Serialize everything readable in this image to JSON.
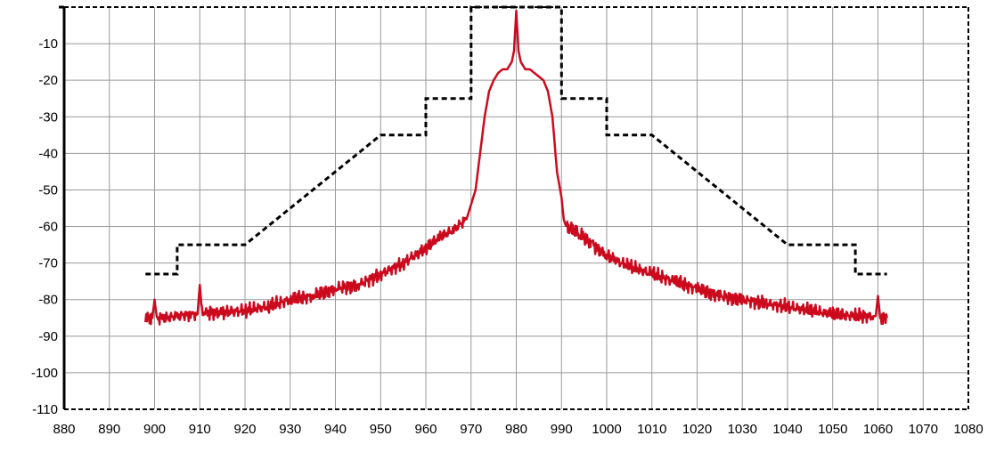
{
  "chart_data": {
    "type": "line",
    "title": "",
    "xlabel": "",
    "ylabel": "",
    "xlim": [
      880,
      1080
    ],
    "ylim": [
      -110,
      0
    ],
    "grid": true,
    "legend": "none",
    "x_ticks": [
      "880",
      "890",
      "900",
      "910",
      "920",
      "930",
      "940",
      "950",
      "960",
      "970",
      "980",
      "990",
      "1000",
      "1010",
      "1020",
      "1030",
      "1040",
      "1050",
      "1060",
      "1070",
      "1080"
    ],
    "y_ticks": [
      "-10",
      "-20",
      "-30",
      "-40",
      "-50",
      "-60",
      "-70",
      "-80",
      "-90",
      "-100",
      "-110"
    ],
    "series": [
      {
        "kind": "mask",
        "color": "#000000",
        "style": "dashed",
        "x": [
          898,
          905,
          905,
          910,
          920,
          950,
          960,
          960,
          970,
          970,
          990,
          990,
          1000,
          1000,
          1010,
          1040,
          1050,
          1055,
          1055,
          1062
        ],
        "y": [
          -73,
          -73,
          -65,
          -65,
          -65,
          -35,
          -35,
          -25,
          -25,
          0,
          0,
          -25,
          -25,
          -35,
          -35,
          -65,
          -65,
          -65,
          -73,
          -73
        ]
      },
      {
        "kind": "spectrum",
        "color": "#cc0a1e",
        "style": "solid",
        "x": [
          898,
          899.5,
          900,
          900.5,
          902,
          905,
          908,
          909.5,
          910,
          910.5,
          912,
          915,
          920,
          925,
          930,
          935,
          940,
          945,
          950,
          955,
          960,
          963,
          966,
          969,
          970,
          970.5,
          971,
          972,
          973,
          974,
          975,
          976,
          977,
          978,
          979,
          979.5,
          980,
          980.5,
          981,
          982,
          983,
          984,
          985,
          986,
          987,
          988,
          989,
          990,
          990.5,
          991,
          994,
          997,
          1000,
          1005,
          1010,
          1015,
          1020,
          1025,
          1030,
          1035,
          1040,
          1045,
          1050,
          1055,
          1059,
          1059.5,
          1060,
          1060.5,
          1062
        ],
        "y": [
          -85,
          -85,
          -80,
          -85,
          -85,
          -84.5,
          -84,
          -84,
          -76,
          -83.5,
          -83.5,
          -83.5,
          -83,
          -82,
          -80,
          -79,
          -77,
          -76,
          -73,
          -70,
          -66,
          -63,
          -61,
          -58,
          -54,
          -52,
          -50,
          -40,
          -30,
          -23,
          -20,
          -18,
          -17,
          -17,
          -15,
          -12,
          -1,
          -12,
          -15,
          -17,
          -17,
          -18,
          -19,
          -20,
          -23,
          -30,
          -45,
          -52,
          -58,
          -60,
          -62,
          -65,
          -68,
          -71,
          -73,
          -75,
          -77,
          -79,
          -80,
          -81,
          -82,
          -83,
          -84,
          -84.5,
          -84.5,
          -84.5,
          -79,
          -85,
          -85
        ]
      }
    ]
  }
}
